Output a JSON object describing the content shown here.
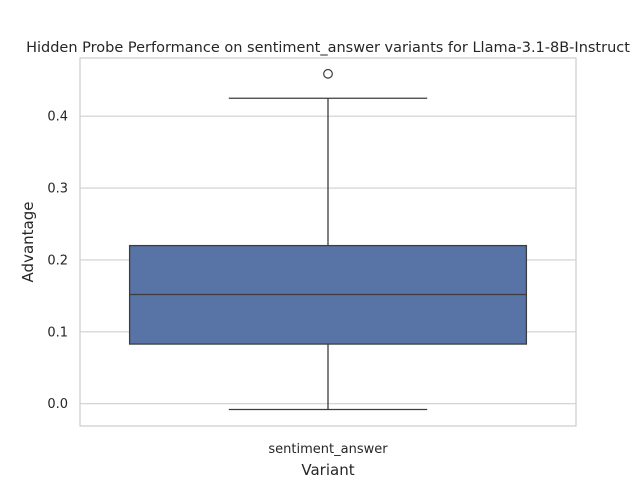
{
  "chart_data": {
    "type": "box",
    "title": "Hidden Probe Performance on sentiment_answer variants for Llama-3.1-8B-Instruct",
    "xlabel": "Variant",
    "ylabel": "Advantage",
    "categories": [
      "sentiment_answer"
    ],
    "boxes": [
      {
        "category": "sentiment_answer",
        "whisker_low": -0.008,
        "q1": 0.083,
        "median": 0.152,
        "q3": 0.22,
        "whisker_high": 0.425,
        "outliers": [
          0.459
        ]
      }
    ],
    "ylim": [
      -0.031,
      0.481
    ],
    "yticks": [
      "0.0",
      "0.1",
      "0.2",
      "0.3",
      "0.4"
    ],
    "grid": true,
    "colors": {
      "box_fill": "#5874a6",
      "line": "#3d3d3d",
      "grid": "#cfcfcf",
      "frame": "#cccccc"
    }
  }
}
